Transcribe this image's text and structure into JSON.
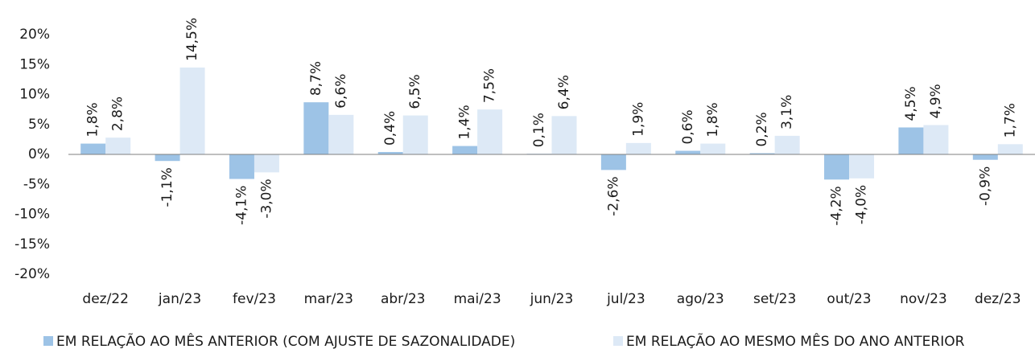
{
  "chart_data": {
    "type": "bar",
    "categories": [
      "dez/22",
      "jan/23",
      "fev/23",
      "mar/23",
      "abr/23",
      "mai/23",
      "jun/23",
      "jul/23",
      "ago/23",
      "set/23",
      "out/23",
      "nov/23",
      "dez/23"
    ],
    "series": [
      {
        "name": "EM RELAÇÃO AO MÊS ANTERIOR (COM AJUSTE DE SAZONALIDADE)",
        "color": "#9dc3e6",
        "values": [
          1.8,
          -1.1,
          -4.1,
          8.7,
          0.4,
          1.4,
          0.1,
          -2.6,
          0.6,
          0.2,
          -4.2,
          4.5,
          -0.9
        ],
        "value_labels": [
          "1,8%",
          "-1,1%",
          "-4,1%",
          "8,7%",
          "0,4%",
          "1,4%",
          "0,1%",
          "-2,6%",
          "0,6%",
          "0,2%",
          "-4,2%",
          "4,5%",
          "-0,9%"
        ]
      },
      {
        "name": "EM RELAÇÃO AO MESMO MÊS DO ANO ANTERIOR",
        "color": "#dde9f6",
        "values": [
          2.8,
          14.5,
          -3.0,
          6.6,
          6.5,
          7.5,
          6.4,
          1.9,
          1.8,
          3.1,
          -4.0,
          4.9,
          1.7
        ],
        "value_labels": [
          "2,8%",
          "14,5%",
          "-3,0%",
          "6,6%",
          "6,5%",
          "7,5%",
          "6,4%",
          "1,9%",
          "1,8%",
          "3,1%",
          "-4,0%",
          "4,9%",
          "1,7%"
        ]
      }
    ],
    "ylim": [
      -20,
      20
    ],
    "yticks": [
      {
        "value": -20,
        "label": "-20%"
      },
      {
        "value": -15,
        "label": "-15%"
      },
      {
        "value": -10,
        "label": "-10%"
      },
      {
        "value": -5,
        "label": "-5%"
      },
      {
        "value": 0,
        "label": "0%"
      },
      {
        "value": 5,
        "label": "5%"
      },
      {
        "value": 10,
        "label": "10%"
      },
      {
        "value": 15,
        "label": "15%"
      },
      {
        "value": 20,
        "label": "20%"
      }
    ],
    "grid": false
  }
}
